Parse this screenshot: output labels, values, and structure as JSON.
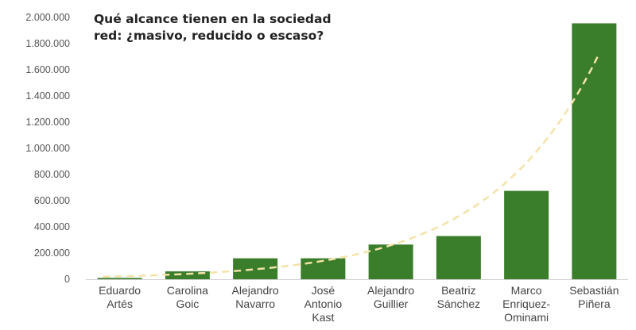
{
  "colors": {
    "bar": "#3a7d2a",
    "trend": "#f3e3a8",
    "axis_text": "#555555",
    "label_text": "#444444",
    "title_text": "#222222"
  },
  "chart_data": {
    "type": "bar",
    "title_lines": [
      "Qué alcance  tienen en la sociedad",
      "red: ¿masivo, reducido o escaso?"
    ],
    "xlabel": "",
    "ylabel": "",
    "ylim": [
      0,
      2000000
    ],
    "yticks": [
      0,
      200000,
      400000,
      600000,
      800000,
      1000000,
      1200000,
      1400000,
      1600000,
      1800000,
      2000000
    ],
    "ytick_labels": [
      "0",
      "200.000",
      "400.000",
      "600.000",
      "800.000",
      "1.000.000",
      "1.200.000",
      "1.400.000",
      "1.600.000",
      "1.800.000",
      "2.000.000"
    ],
    "grid": false,
    "categories": [
      [
        "Eduardo",
        "Artés"
      ],
      [
        "Carolina",
        "Goic"
      ],
      [
        "Alejandro",
        "Navarro"
      ],
      [
        "José",
        "Antonio",
        "Kast"
      ],
      [
        "Alejandro",
        "Guillier"
      ],
      [
        "Beatriz",
        "Sánchez"
      ],
      [
        "Marco",
        "Enriquez-",
        "Ominami"
      ],
      [
        "Sebastián",
        "Piñera"
      ]
    ],
    "values": [
      10000,
      60000,
      160000,
      160000,
      265000,
      330000,
      675000,
      1955000
    ],
    "trendline": {
      "type": "exponential",
      "style": "dashed"
    }
  }
}
